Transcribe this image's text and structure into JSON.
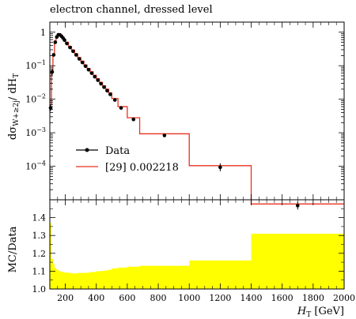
{
  "chart_data": [
    {
      "type": "line",
      "title": "electron channel, dressed level",
      "ylabel_main": "dσ",
      "ylabel_sub": "W+≥2j",
      "ylabel_rest": "/ dH",
      "ylabel_sub2": "T",
      "yscale": "log",
      "xlim": [
        100,
        2000
      ],
      "ylim": [
        1e-05,
        2
      ],
      "y_tick_labels": [
        {
          "value": 1,
          "mant": "1",
          "exp": ""
        },
        {
          "value": 0.1,
          "mant": "10",
          "exp": "−1"
        },
        {
          "value": 0.01,
          "mant": "10",
          "exp": "−2"
        },
        {
          "value": 0.001,
          "mant": "10",
          "exp": "−3"
        },
        {
          "value": 0.0001,
          "mant": "10",
          "exp": "−4"
        }
      ],
      "legend": {
        "position": "lower-left",
        "entries": [
          {
            "label": "Data",
            "color": "#000000",
            "marker": "dot"
          },
          {
            "label": "[29] 0.002218",
            "color": "#e8321e",
            "marker": "line"
          }
        ]
      },
      "data": {
        "name": "Data",
        "color": "#000000",
        "x": [
          105,
          115,
          125,
          135,
          145,
          155,
          165,
          175,
          185,
          195,
          210,
          230,
          250,
          270,
          290,
          310,
          330,
          350,
          370,
          390,
          410,
          430,
          450,
          470,
          490,
          520,
          560,
          640,
          840,
          1200,
          1700
        ],
        "y": [
          0.0055,
          0.065,
          0.21,
          0.5,
          0.72,
          0.84,
          0.83,
          0.76,
          0.67,
          0.58,
          0.46,
          0.35,
          0.27,
          0.21,
          0.16,
          0.125,
          0.097,
          0.076,
          0.06,
          0.047,
          0.037,
          0.029,
          0.023,
          0.018,
          0.014,
          0.0095,
          0.0055,
          0.0025,
          0.00083,
          9.3e-05,
          6.7e-06
        ]
      },
      "mc": {
        "name": "[29] 0.002218",
        "color": "#e8321e",
        "bin_edges": [
          100,
          110,
          120,
          130,
          140,
          150,
          160,
          170,
          180,
          190,
          200,
          220,
          240,
          260,
          280,
          300,
          320,
          340,
          360,
          380,
          400,
          420,
          440,
          460,
          480,
          500,
          540,
          600,
          680,
          1000,
          1400,
          2000
        ],
        "values": [
          0.0068,
          0.07,
          0.23,
          0.55,
          0.78,
          0.9,
          0.89,
          0.82,
          0.72,
          0.63,
          0.5,
          0.38,
          0.295,
          0.23,
          0.175,
          0.136,
          0.106,
          0.083,
          0.066,
          0.052,
          0.041,
          0.032,
          0.025,
          0.02,
          0.0155,
          0.0105,
          0.006,
          0.0028,
          0.00093,
          0.000104,
          7.5e-06
        ]
      }
    },
    {
      "type": "area",
      "ylabel": "MC/Data",
      "xlabel_main": "H",
      "xlabel_sub": "T",
      "xlabel_unit": " [GeV]",
      "xlim": [
        100,
        2000
      ],
      "ylim": [
        1.0,
        1.5
      ],
      "x_ticks": [
        200,
        400,
        600,
        800,
        1000,
        1200,
        1400,
        1600,
        1800,
        2000
      ],
      "x_tick_labels": [
        "200",
        "400",
        "600",
        "800",
        "1000",
        "1200",
        "1400",
        "1600",
        "1800",
        "2000"
      ],
      "y_ticks": [
        1.0,
        1.1,
        1.2,
        1.3,
        1.4
      ],
      "y_tick_labels": [
        "1.0",
        "1.1",
        "1.2",
        "1.3",
        "1.4"
      ],
      "band_color": "#ffff00",
      "bin_edges": [
        100,
        110,
        120,
        130,
        140,
        150,
        160,
        170,
        180,
        190,
        200,
        220,
        240,
        260,
        280,
        300,
        320,
        340,
        360,
        380,
        400,
        420,
        440,
        460,
        480,
        500,
        540,
        600,
        680,
        1000,
        1400,
        2000
      ],
      "values": [
        1.37,
        1.17,
        1.14,
        1.12,
        1.11,
        1.105,
        1.1,
        1.097,
        1.095,
        1.093,
        1.092,
        1.09,
        1.088,
        1.087,
        1.09,
        1.09,
        1.09,
        1.092,
        1.095,
        1.095,
        1.1,
        1.1,
        1.102,
        1.105,
        1.108,
        1.115,
        1.12,
        1.125,
        1.13,
        1.16,
        1.31
      ]
    }
  ]
}
